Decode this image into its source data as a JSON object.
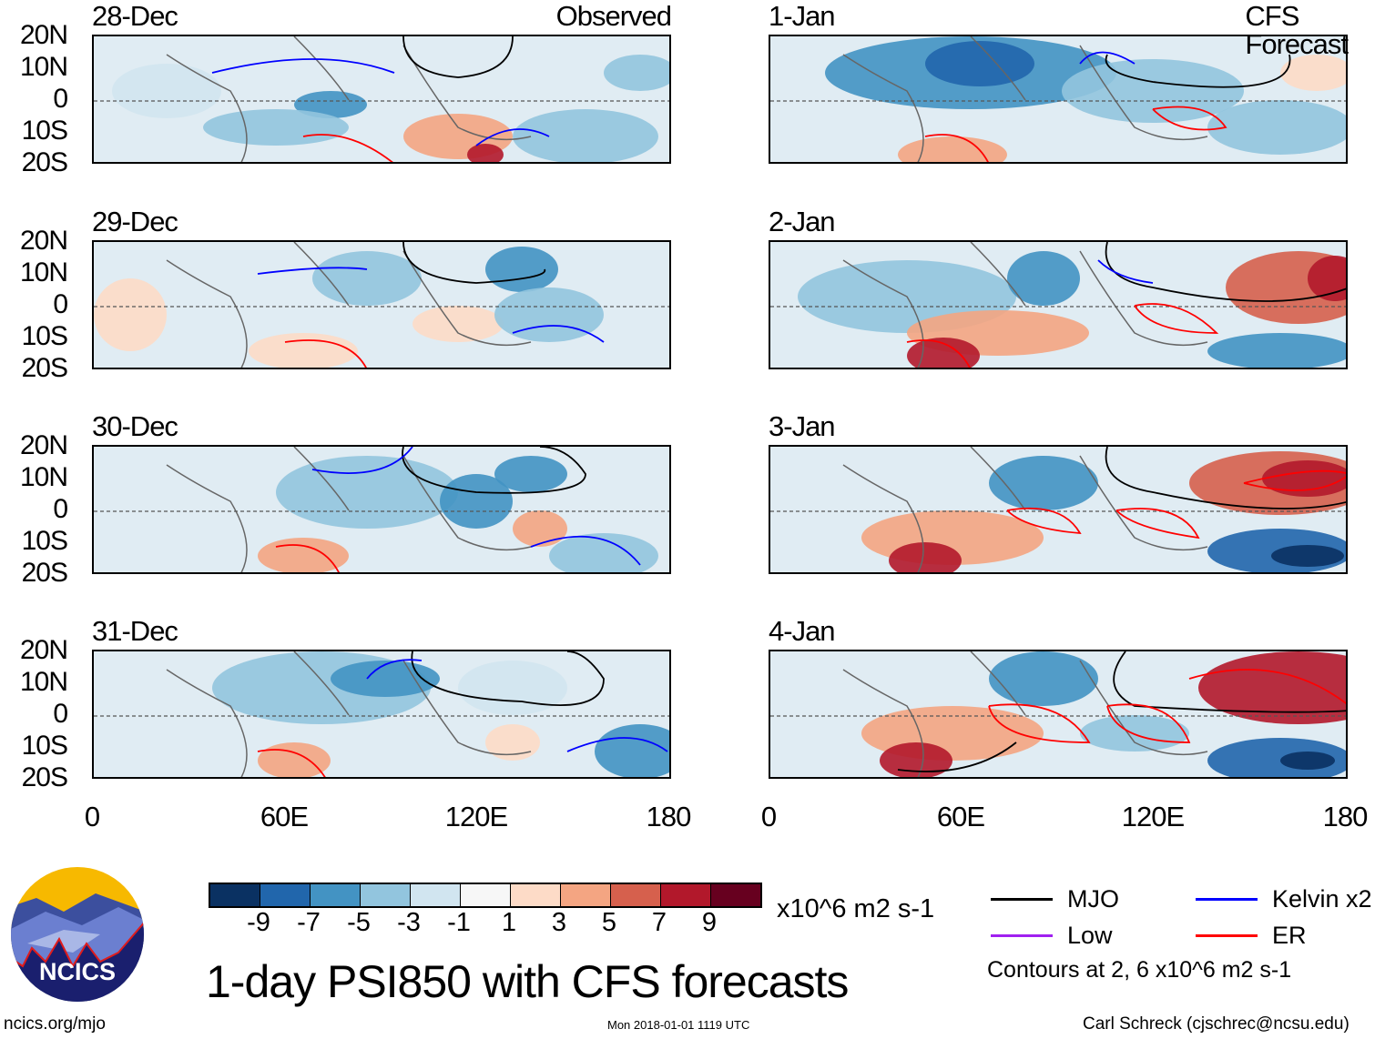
{
  "figure": {
    "title": "1-day PSI850 with CFS forecasts",
    "left_column_label": "Observed",
    "right_column_label": "CFS Forecast",
    "left_panels": [
      "28-Dec",
      "29-Dec",
      "30-Dec",
      "31-Dec"
    ],
    "right_panels": [
      "1-Jan",
      "2-Jan",
      "3-Jan",
      "4-Jan"
    ],
    "lat_labels": [
      "20N",
      "10N",
      "0",
      "10S",
      "20S"
    ],
    "lon_labels": [
      "0",
      "60E",
      "120E",
      "180"
    ]
  },
  "colorbar": {
    "colors": [
      "#0a3162",
      "#2166ac",
      "#4393c3",
      "#92c5de",
      "#d1e5f0",
      "#f7f7f7",
      "#fddbc7",
      "#f4a582",
      "#d6604d",
      "#b2182b",
      "#67001f"
    ],
    "labels": [
      "-9",
      "-7",
      "-5",
      "-3",
      "-1",
      "1",
      "3",
      "5",
      "7",
      "9"
    ],
    "units": "x10^6 m2 s-1"
  },
  "legend": {
    "items": [
      {
        "label": "MJO",
        "color": "#000000"
      },
      {
        "label": "Kelvin x2",
        "color": "#0000ff"
      },
      {
        "label": "Low",
        "color": "#a020f0"
      },
      {
        "label": "ER",
        "color": "#ff0000"
      }
    ],
    "note": "Contours at 2, 6 x10^6 m2 s-1"
  },
  "logo": {
    "text": "NCICS"
  },
  "footer": {
    "url": "ncics.org/mjo",
    "timestamp": "Mon 2018-01-01 1119 UTC",
    "credit": "Carl Schreck (cjschrec@ncsu.edu)"
  }
}
